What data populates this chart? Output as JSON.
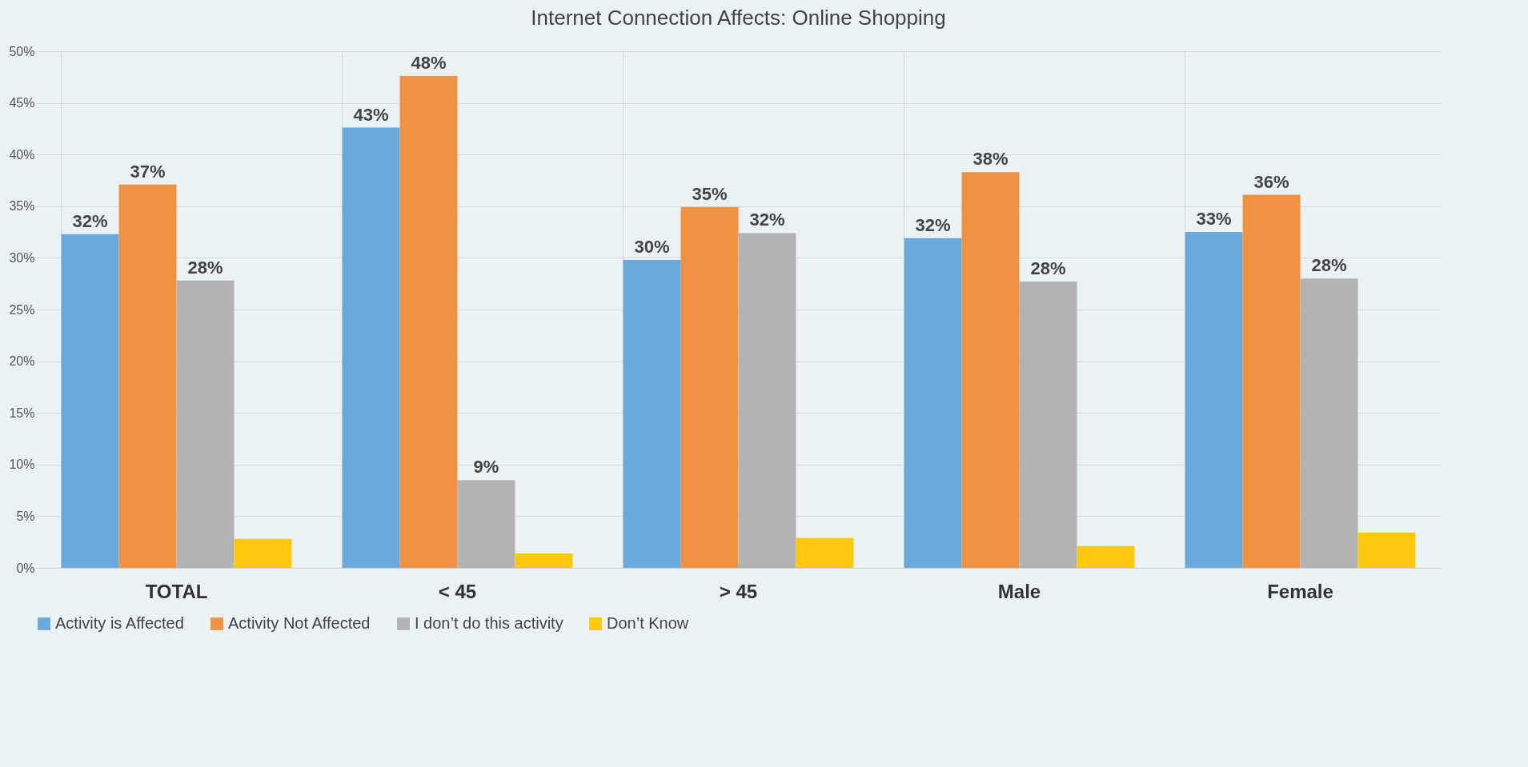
{
  "chart_data": {
    "type": "bar",
    "title": "Internet Connection Affects: Online Shopping",
    "categories": [
      "TOTAL",
      "< 45",
      "> 45",
      "Male",
      "Female"
    ],
    "series": [
      {
        "name": "Activity is Affected",
        "color": "#6aa9dc",
        "values": [
          32.3,
          42.6,
          29.8,
          31.9,
          32.5
        ],
        "value_labels": [
          "32%",
          "43%",
          "30%",
          "32%",
          "33%"
        ]
      },
      {
        "name": "Activity Not Affected",
        "color": "#f09242",
        "values": [
          37.1,
          47.6,
          34.9,
          38.3,
          36.1
        ],
        "value_labels": [
          "37%",
          "48%",
          "35%",
          "38%",
          "36%"
        ]
      },
      {
        "name": "I don’t do this activity",
        "color": "#b3b3b3",
        "values": [
          27.8,
          8.5,
          32.4,
          27.7,
          28.0
        ],
        "value_labels": [
          "28%",
          "9%",
          "32%",
          "28%",
          "28%"
        ]
      },
      {
        "name": "Don’t Know",
        "color": "#fdc80f",
        "values": [
          2.8,
          1.4,
          2.9,
          2.1,
          3.4
        ]
      }
    ],
    "ylim": [
      0,
      50
    ],
    "yticks": [
      {
        "value": 0,
        "label": "0%"
      },
      {
        "value": 5,
        "label": "5%"
      },
      {
        "value": 10,
        "label": "10%"
      },
      {
        "value": 15,
        "label": "15%"
      },
      {
        "value": 20,
        "label": "20%"
      },
      {
        "value": 25,
        "label": "25%"
      },
      {
        "value": 30,
        "label": "30%"
      },
      {
        "value": 35,
        "label": "35%"
      },
      {
        "value": 40,
        "label": "40%"
      },
      {
        "value": 45,
        "label": "45%"
      },
      {
        "value": 50,
        "label": "50%"
      }
    ],
    "grid": true,
    "legend": "bottom"
  }
}
